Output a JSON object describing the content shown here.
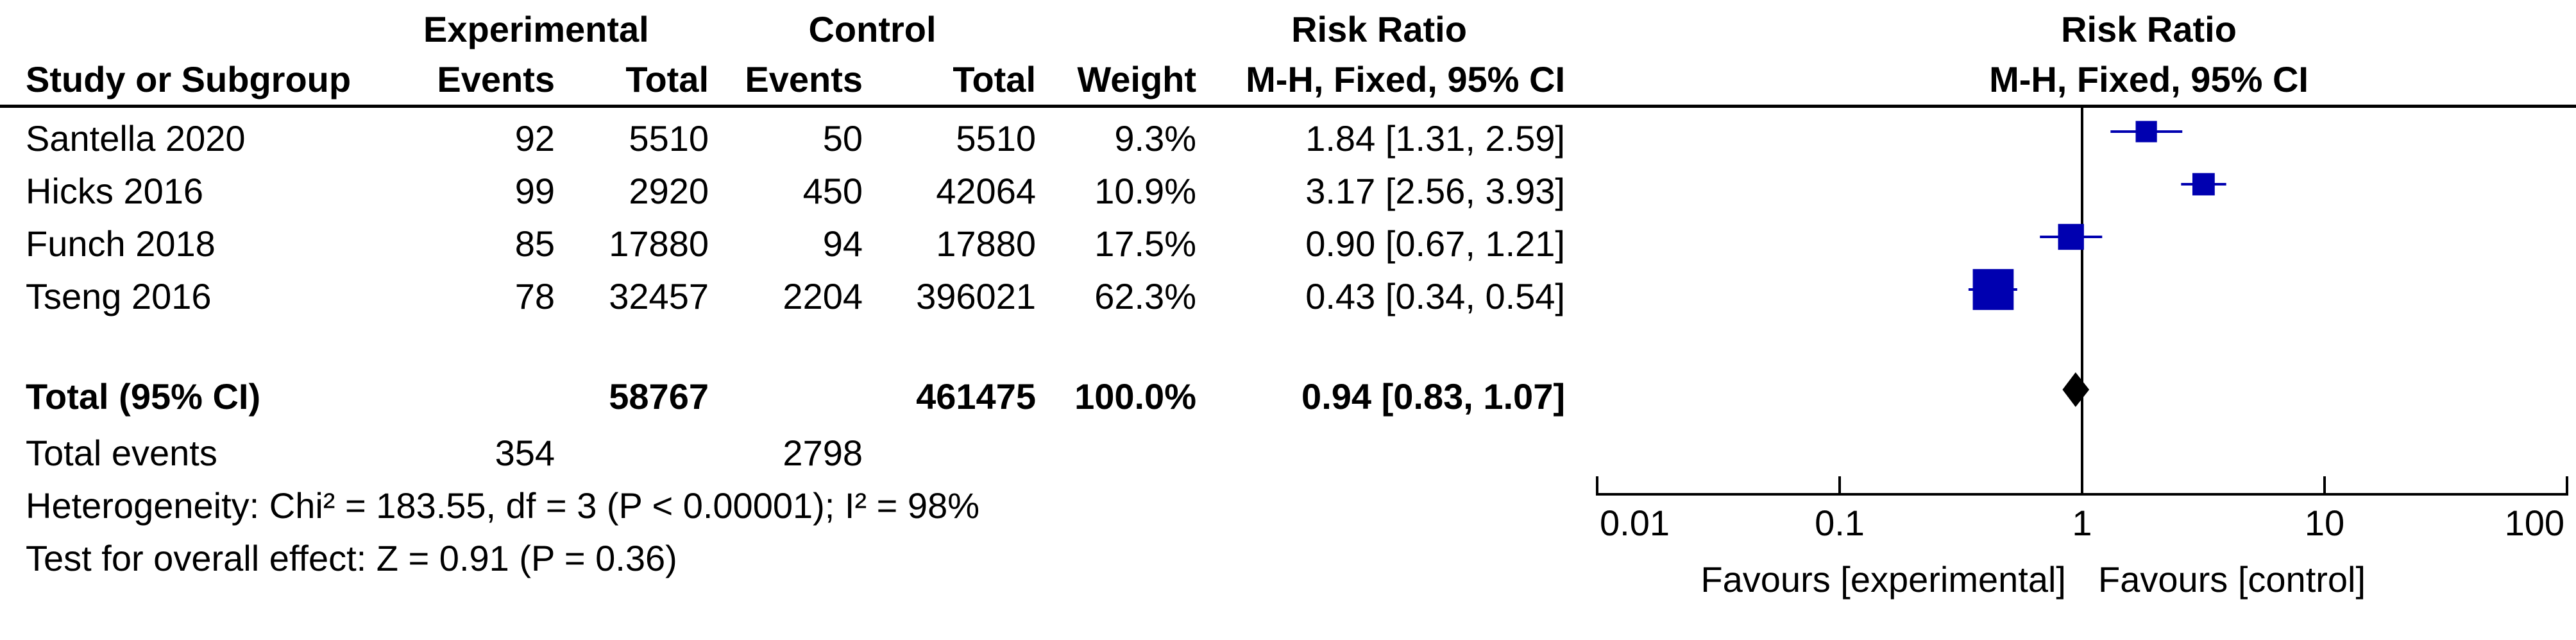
{
  "header": {
    "study_label": "Study or Subgroup",
    "experimental_group": "Experimental",
    "control_group": "Control",
    "events_label": "Events",
    "total_label": "Total",
    "weight_label": "Weight",
    "risk_ratio_label": "Risk Ratio",
    "method_label": "M-H, Fixed, 95% CI"
  },
  "studies": [
    {
      "name": "Santella 2020",
      "exp_events": "92",
      "exp_total": "5510",
      "ctrl_events": "50",
      "ctrl_total": "5510",
      "weight": "9.3%",
      "ci_text": "1.84 [1.31, 2.59]"
    },
    {
      "name": "Hicks 2016",
      "exp_events": "99",
      "exp_total": "2920",
      "ctrl_events": "450",
      "ctrl_total": "42064",
      "weight": "10.9%",
      "ci_text": "3.17 [2.56, 3.93]"
    },
    {
      "name": "Funch 2018",
      "exp_events": "85",
      "exp_total": "17880",
      "ctrl_events": "94",
      "ctrl_total": "17880",
      "weight": "17.5%",
      "ci_text": "0.90 [0.67, 1.21]"
    },
    {
      "name": "Tseng 2016",
      "exp_events": "78",
      "exp_total": "32457",
      "ctrl_events": "2204",
      "ctrl_total": "396021",
      "weight": "62.3%",
      "ci_text": "0.43 [0.34, 0.54]"
    }
  ],
  "total": {
    "label": "Total (95% CI)",
    "exp_total": "58767",
    "ctrl_total": "461475",
    "weight": "100.0%",
    "ci_text": "0.94 [0.83, 1.07]"
  },
  "total_events": {
    "label": "Total events",
    "exp": "354",
    "ctrl": "2798"
  },
  "heterogeneity": "Heterogeneity: Chi² = 183.55, df = 3 (P < 0.00001); I² = 98%",
  "overall_effect": "Test for overall effect: Z = 0.91 (P = 0.36)",
  "chart_data": {
    "type": "scatter",
    "subtype": "forest-plot",
    "title": "Risk Ratio",
    "subtitle": "M-H, Fixed, 95% CI",
    "x_scale": "log",
    "xlim": [
      0.01,
      100
    ],
    "x_ticks": [
      "0.01",
      "0.1",
      "1",
      "10",
      "100"
    ],
    "favours_left": "Favours [experimental]",
    "favours_right": "Favours [control]",
    "marker_color": "#0000b0",
    "pooled_color": "#000000",
    "series": [
      {
        "study": "Santella 2020",
        "rr": 1.84,
        "lower": 1.31,
        "upper": 2.59,
        "weight": 9.3
      },
      {
        "study": "Hicks 2016",
        "rr": 3.17,
        "lower": 2.56,
        "upper": 3.93,
        "weight": 10.9
      },
      {
        "study": "Funch 2018",
        "rr": 0.9,
        "lower": 0.67,
        "upper": 1.21,
        "weight": 17.5
      },
      {
        "study": "Tseng 2016",
        "rr": 0.43,
        "lower": 0.34,
        "upper": 0.54,
        "weight": 62.3
      }
    ],
    "pooled": {
      "rr": 0.94,
      "lower": 0.83,
      "upper": 1.07
    }
  }
}
